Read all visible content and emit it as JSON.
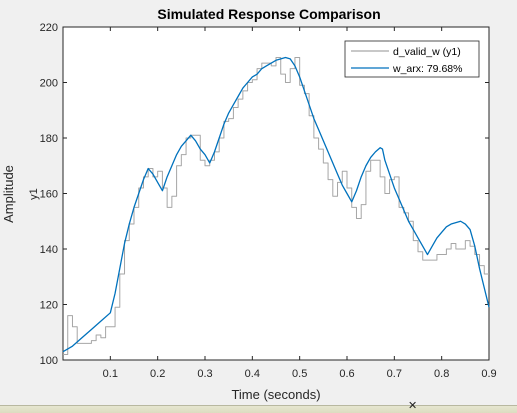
{
  "chart_data": {
    "type": "line",
    "title": "Simulated Response Comparison",
    "xlabel": "Time (seconds)",
    "ylabel": "Amplitude",
    "ylabel_channel": "y1",
    "xlim": [
      0,
      0.9
    ],
    "ylim": [
      100,
      220
    ],
    "xticks": [
      0.1,
      0.2,
      0.3,
      0.4,
      0.5,
      0.6,
      0.7,
      0.8,
      0.9
    ],
    "yticks": [
      100,
      120,
      140,
      160,
      180,
      200,
      220
    ],
    "grid": false,
    "legend_placement": "top-right",
    "series": [
      {
        "name": "d_valid_w (y1)",
        "color": "#a6a6a6",
        "style": "stairs",
        "x": [
          0.0,
          0.01,
          0.02,
          0.03,
          0.04,
          0.05,
          0.06,
          0.07,
          0.08,
          0.09,
          0.1,
          0.11,
          0.12,
          0.13,
          0.14,
          0.15,
          0.16,
          0.17,
          0.18,
          0.19,
          0.2,
          0.21,
          0.22,
          0.23,
          0.24,
          0.25,
          0.26,
          0.27,
          0.28,
          0.29,
          0.3,
          0.31,
          0.32,
          0.33,
          0.34,
          0.35,
          0.36,
          0.37,
          0.38,
          0.39,
          0.4,
          0.41,
          0.42,
          0.43,
          0.44,
          0.45,
          0.46,
          0.47,
          0.48,
          0.49,
          0.5,
          0.51,
          0.52,
          0.53,
          0.54,
          0.55,
          0.56,
          0.57,
          0.58,
          0.59,
          0.6,
          0.61,
          0.62,
          0.63,
          0.64,
          0.65,
          0.66,
          0.67,
          0.68,
          0.69,
          0.7,
          0.71,
          0.72,
          0.73,
          0.74,
          0.75,
          0.76,
          0.77,
          0.78,
          0.79,
          0.8,
          0.81,
          0.82,
          0.83,
          0.84,
          0.85,
          0.86,
          0.87,
          0.88,
          0.89
        ],
        "y": [
          102,
          116,
          112,
          106,
          106,
          106,
          107,
          109,
          108,
          112,
          112,
          119,
          131,
          143,
          149,
          155,
          162,
          166,
          169,
          166,
          168,
          162,
          155,
          159,
          170,
          174,
          180,
          181,
          181,
          172,
          170,
          172,
          175,
          180,
          186,
          187,
          191,
          194,
          197,
          200,
          201,
          205,
          207,
          207,
          206,
          209,
          203,
          200,
          205,
          209,
          199,
          196,
          188,
          180,
          176,
          171,
          165,
          159,
          164,
          168,
          162,
          155,
          151,
          156,
          168,
          172,
          172,
          166,
          160,
          165,
          166,
          155,
          153,
          150,
          143,
          139,
          136,
          136,
          136,
          138,
          138,
          140,
          142,
          140,
          140,
          143,
          141,
          138,
          134,
          131
        ]
      },
      {
        "name": "w_arx: 79.68%",
        "color": "#0072bd",
        "style": "line",
        "x": [
          0.0,
          0.02,
          0.04,
          0.06,
          0.08,
          0.1,
          0.11,
          0.12,
          0.13,
          0.14,
          0.15,
          0.16,
          0.17,
          0.18,
          0.19,
          0.2,
          0.21,
          0.22,
          0.23,
          0.24,
          0.25,
          0.26,
          0.27,
          0.28,
          0.29,
          0.3,
          0.31,
          0.32,
          0.33,
          0.34,
          0.35,
          0.36,
          0.37,
          0.38,
          0.39,
          0.4,
          0.41,
          0.42,
          0.43,
          0.44,
          0.45,
          0.46,
          0.47,
          0.48,
          0.49,
          0.5,
          0.51,
          0.52,
          0.53,
          0.54,
          0.55,
          0.56,
          0.57,
          0.58,
          0.59,
          0.6,
          0.61,
          0.62,
          0.63,
          0.64,
          0.65,
          0.66,
          0.67,
          0.675,
          0.68,
          0.69,
          0.7,
          0.71,
          0.72,
          0.73,
          0.74,
          0.75,
          0.76,
          0.77,
          0.78,
          0.79,
          0.8,
          0.81,
          0.82,
          0.83,
          0.84,
          0.85,
          0.86,
          0.87,
          0.88,
          0.89,
          0.9
        ],
        "y": [
          103,
          105,
          108,
          111,
          114,
          117,
          124,
          133,
          142,
          149,
          155,
          160,
          165,
          169,
          167,
          164,
          161,
          166,
          170,
          174,
          177,
          179,
          181,
          179,
          176,
          174,
          171,
          175,
          180,
          185,
          189,
          192,
          195,
          198,
          200,
          202,
          203,
          205,
          206,
          207,
          208,
          208.5,
          209,
          208.5,
          206,
          202,
          197,
          192,
          187,
          183,
          179,
          175,
          171,
          167,
          163,
          160,
          157,
          161,
          166,
          170,
          173,
          175,
          176.5,
          176,
          172,
          167,
          162,
          158,
          154,
          150,
          147,
          144,
          141,
          138,
          141,
          144,
          146,
          148,
          149,
          149.5,
          150,
          149,
          147,
          141,
          133,
          126,
          119
        ]
      }
    ]
  },
  "ui": {
    "bottom_strip_glyph": "✕"
  }
}
